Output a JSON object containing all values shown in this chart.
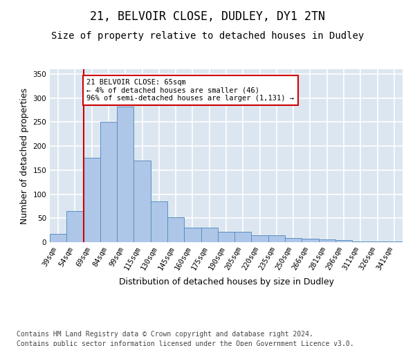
{
  "title_line1": "21, BELVOIR CLOSE, DUDLEY, DY1 2TN",
  "title_line2": "Size of property relative to detached houses in Dudley",
  "xlabel": "Distribution of detached houses by size in Dudley",
  "ylabel": "Number of detached properties",
  "categories": [
    "39sqm",
    "54sqm",
    "69sqm",
    "84sqm",
    "99sqm",
    "115sqm",
    "130sqm",
    "145sqm",
    "160sqm",
    "175sqm",
    "190sqm",
    "205sqm",
    "220sqm",
    "235sqm",
    "250sqm",
    "266sqm",
    "281sqm",
    "296sqm",
    "311sqm",
    "326sqm",
    "341sqm"
  ],
  "values": [
    18,
    65,
    175,
    250,
    282,
    170,
    85,
    52,
    30,
    30,
    22,
    22,
    15,
    15,
    8,
    7,
    6,
    5,
    2,
    2,
    2
  ],
  "bar_color": "#aec6e8",
  "bar_edge_color": "#5a8fc0",
  "vline_x": 1.5,
  "vline_color": "#cc0000",
  "annotation_text": "21 BELVOIR CLOSE: 65sqm\n← 4% of detached houses are smaller (46)\n96% of semi-detached houses are larger (1,131) →",
  "annotation_box_color": "#cc0000",
  "annotation_text_color": "#000000",
  "ylim": [
    0,
    360
  ],
  "yticks": [
    0,
    50,
    100,
    150,
    200,
    250,
    300,
    350
  ],
  "background_color": "#dce6f0",
  "grid_color": "#ffffff",
  "footer_line1": "Contains HM Land Registry data © Crown copyright and database right 2024.",
  "footer_line2": "Contains public sector information licensed under the Open Government Licence v3.0.",
  "title_fontsize": 12,
  "subtitle_fontsize": 10,
  "xlabel_fontsize": 9,
  "ylabel_fontsize": 9,
  "tick_fontsize": 7.5,
  "footer_fontsize": 7
}
